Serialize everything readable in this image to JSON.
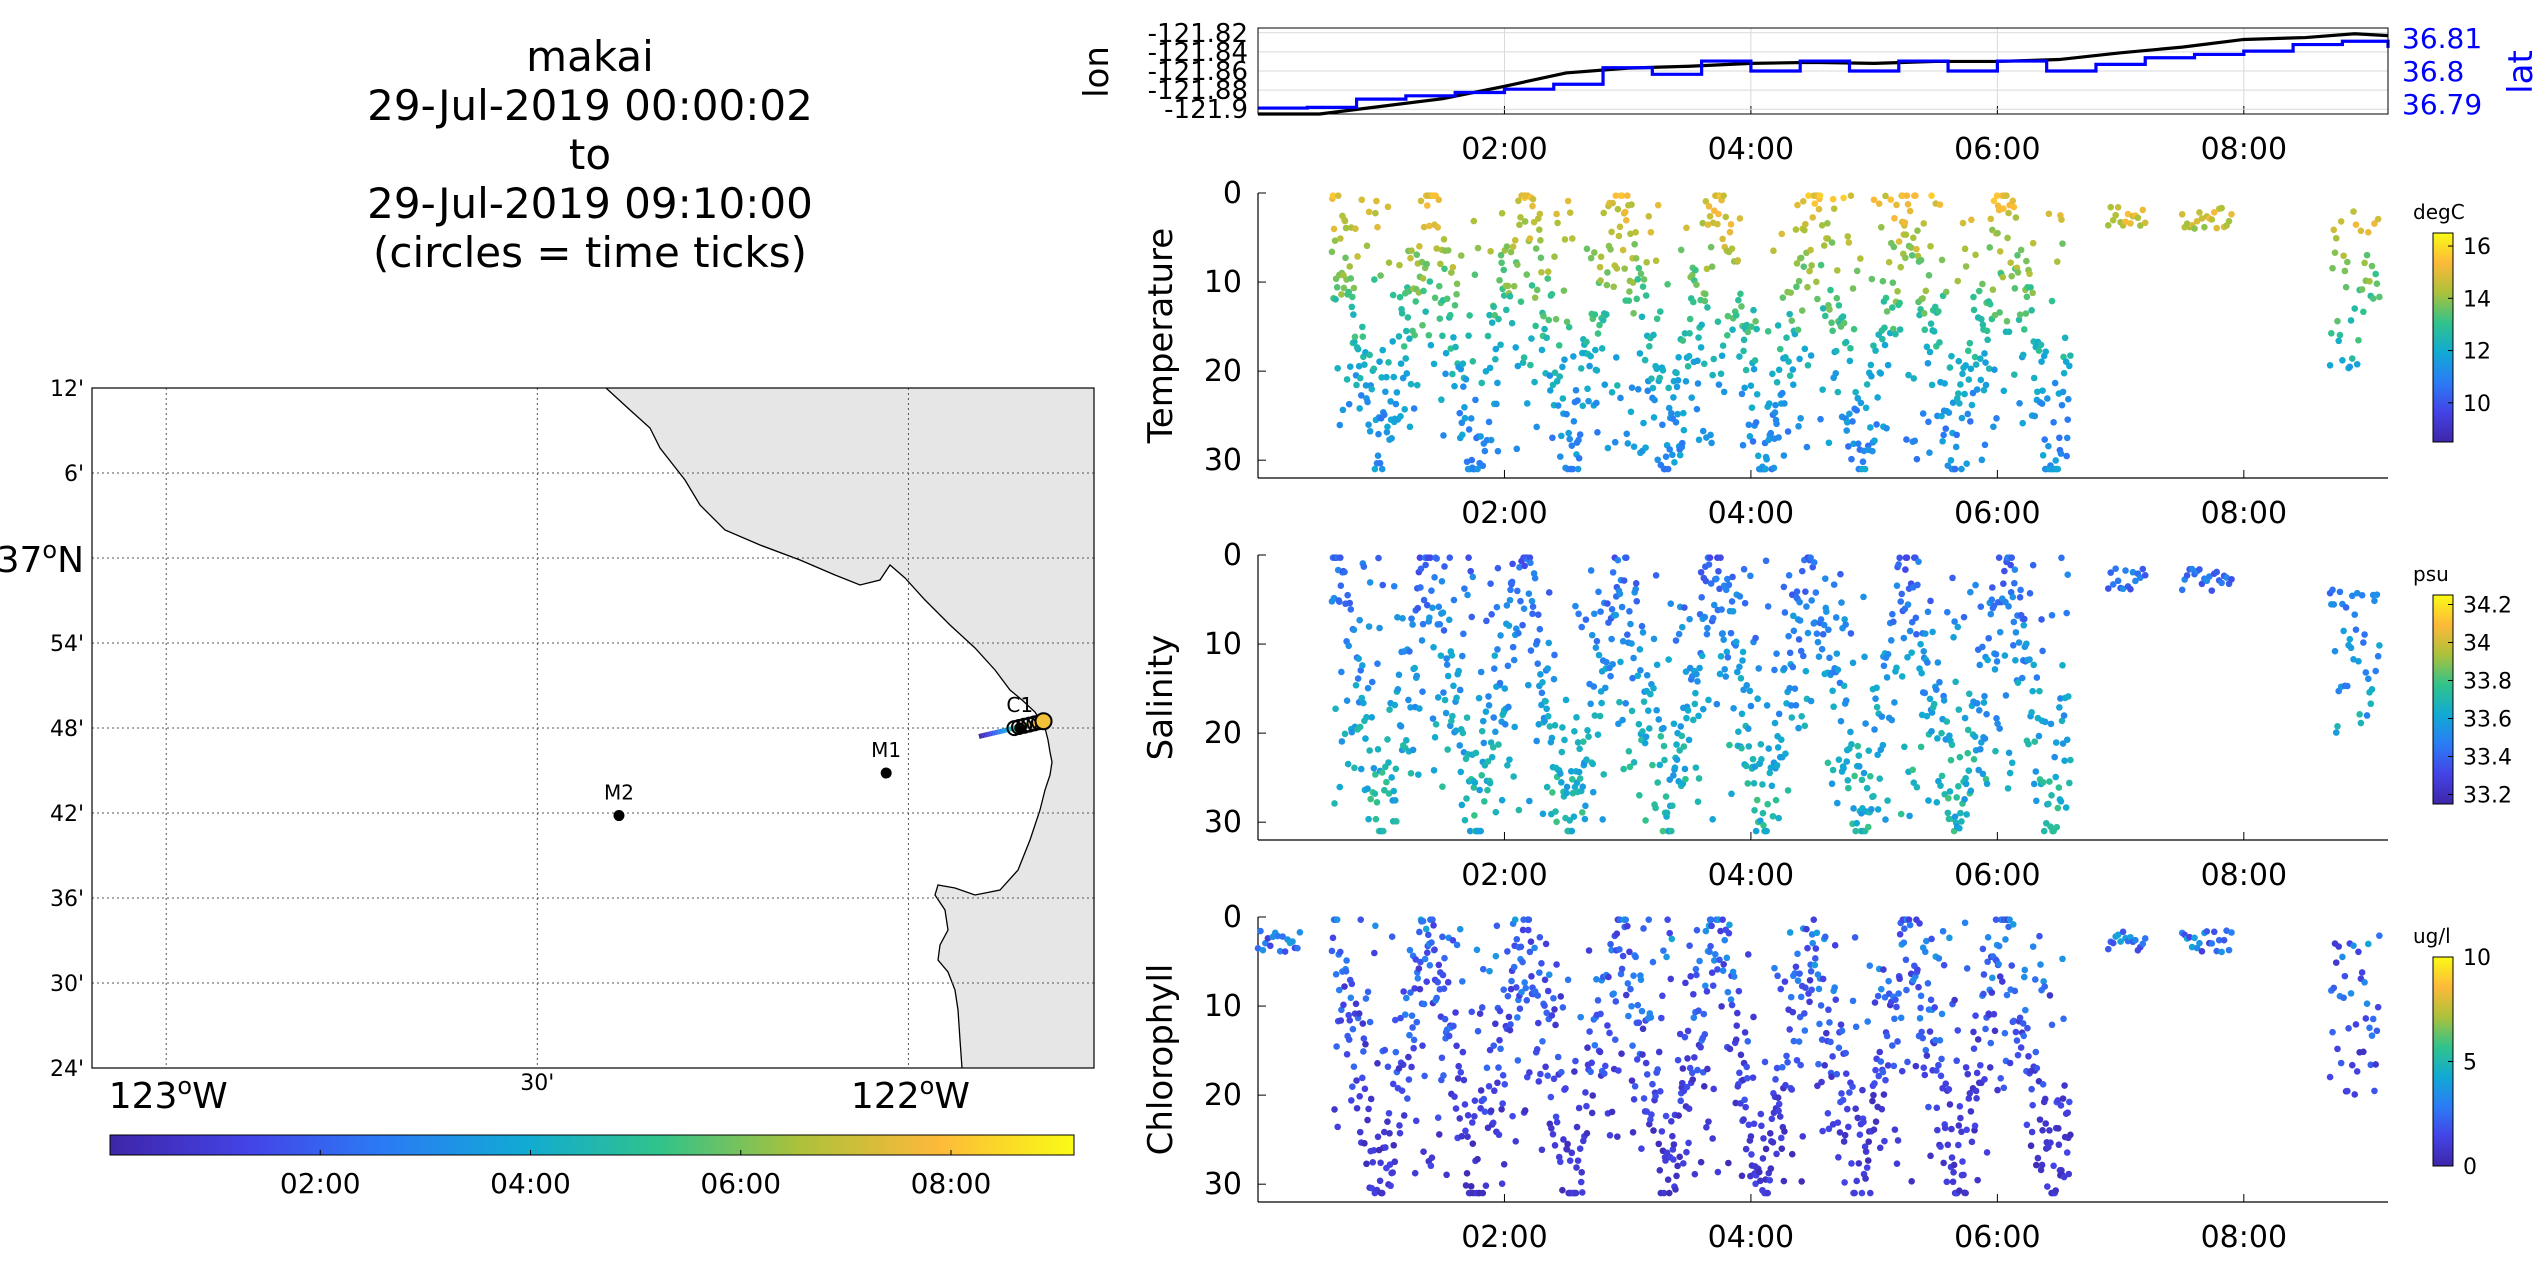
{
  "title": {
    "line1": "makai",
    "line2": "29-Jul-2019 00:00:02",
    "line3": "to",
    "line4": "29-Jul-2019 09:10:00",
    "line5": "(circles = time ticks)"
  },
  "colors": {
    "lon_line": "#000000",
    "lat_line": "#0000ff",
    "land": "#e6e6e6",
    "colormap": [
      "#3e26a8",
      "#4443e7",
      "#2a7cf5",
      "#11aad4",
      "#31c38a",
      "#acc13a",
      "#fdb93a",
      "#f9fb15"
    ]
  },
  "chart_data": [
    {
      "type": "map",
      "lat_tick_labels": [
        "12'",
        "6'",
        "37°N",
        "54'",
        "48'",
        "42'",
        "36'",
        "30'",
        "24'"
      ],
      "lat_ticks_deg": [
        37.2,
        37.1,
        37.0,
        36.9,
        36.8,
        36.7,
        36.6,
        36.5,
        36.4
      ],
      "lon_tick_labels": [
        "123°W",
        "30'",
        "122°W"
      ],
      "lon_ticks_deg": [
        -123.0,
        -122.5,
        -122.0
      ],
      "xlim": [
        -123.1,
        -121.75
      ],
      "ylim": [
        36.4,
        37.2
      ],
      "grid": true,
      "stations": [
        {
          "name": "M2",
          "lon": -122.39,
          "lat": 36.697
        },
        {
          "name": "M1",
          "lon": -122.03,
          "lat": 36.747
        },
        {
          "name": "C1",
          "lon": -121.85,
          "lat": 36.8
        }
      ],
      "track": {
        "lon_start": -121.905,
        "lat_start": 36.79,
        "lon_end": -121.818,
        "lat_end": 36.808
      },
      "time_colorbar": {
        "tick_labels": [
          "02:00",
          "04:00",
          "06:00",
          "08:00"
        ],
        "tick_hours": [
          2,
          4,
          6,
          8
        ],
        "range_hours": [
          0,
          9.17
        ]
      }
    },
    {
      "type": "line",
      "ylabel_left": "lon",
      "ylabel_right": "lat",
      "yticks_left": [
        "-121.82",
        "-121.84",
        "-121.86",
        "-121.88",
        "-121.9"
      ],
      "yticks_right": [
        "36.81",
        "36.8",
        "36.79"
      ],
      "ylim_left": [
        -121.905,
        -121.815
      ],
      "ylim_right": [
        36.787,
        36.813
      ],
      "xlim_hours": [
        0,
        9.17
      ],
      "xticks": [
        "02:00",
        "04:00",
        "06:00",
        "08:00"
      ],
      "xtick_hours": [
        2,
        4,
        6,
        8
      ],
      "grid": true,
      "series": [
        {
          "name": "lon",
          "axis": "left",
          "hours": [
            0,
            0.5,
            1.0,
            1.5,
            2.0,
            2.5,
            3.0,
            3.5,
            4.0,
            4.5,
            5.0,
            5.5,
            6.0,
            6.5,
            7.0,
            7.5,
            8.0,
            8.5,
            8.9,
            9.17
          ],
          "values": [
            -121.905,
            -121.905,
            -121.897,
            -121.889,
            -121.876,
            -121.862,
            -121.857,
            -121.855,
            -121.852,
            -121.851,
            -121.852,
            -121.85,
            -121.85,
            -121.848,
            -121.841,
            -121.835,
            -121.827,
            -121.825,
            -121.821,
            -121.823
          ]
        },
        {
          "name": "lat",
          "axis": "right",
          "hours": [
            0,
            0.4,
            0.8,
            1.2,
            1.6,
            2.0,
            2.4,
            2.8,
            3.2,
            3.6,
            4.0,
            4.4,
            4.8,
            5.2,
            5.6,
            6.0,
            6.4,
            6.8,
            7.2,
            7.6,
            8.0,
            8.4,
            8.8,
            9.17
          ],
          "values": [
            36.7888,
            36.789,
            36.7915,
            36.7925,
            36.7935,
            36.7945,
            36.796,
            36.801,
            36.799,
            36.803,
            36.8,
            36.803,
            36.8,
            36.803,
            36.8,
            36.803,
            36.8,
            36.802,
            36.804,
            36.805,
            36.806,
            36.808,
            36.809,
            36.807
          ]
        }
      ]
    },
    {
      "type": "scatter",
      "variable": "Temperature",
      "ylabel": "Temperature",
      "yticks": [
        "0",
        "10",
        "20",
        "30"
      ],
      "ylim": [
        32,
        0
      ],
      "xlim_hours": [
        0,
        9.17
      ],
      "xticks": [
        "02:00",
        "04:00",
        "06:00",
        "08:00"
      ],
      "xtick_hours": [
        2,
        4,
        6,
        8
      ],
      "colorbar": {
        "unit": "degC",
        "ticks": [
          "16",
          "14",
          "12",
          "10"
        ],
        "tick_values": [
          16,
          14,
          12,
          10
        ],
        "range": [
          8.5,
          16.5
        ]
      },
      "profile_start_hours": 0.6,
      "profile_end_hours": 6.6,
      "yo_period_hours": 0.78,
      "surface_only_hours": [
        [
          6.9,
          7.2
        ],
        [
          7.5,
          7.9
        ]
      ],
      "late_block_hours": [
        8.7,
        9.1
      ],
      "value_range_shallow": [
        14.5,
        15.8
      ],
      "value_range_deep": [
        10.5,
        12.0
      ]
    },
    {
      "type": "scatter",
      "variable": "Salinity",
      "ylabel": "Salinity",
      "yticks": [
        "0",
        "10",
        "20",
        "30"
      ],
      "ylim": [
        32,
        0
      ],
      "xlim_hours": [
        0,
        9.17
      ],
      "xticks": [
        "02:00",
        "04:00",
        "06:00",
        "08:00"
      ],
      "xtick_hours": [
        2,
        4,
        6,
        8
      ],
      "colorbar": {
        "unit": "psu",
        "ticks": [
          "34.2",
          "34",
          "33.8",
          "33.6",
          "33.4",
          "33.2"
        ],
        "tick_values": [
          34.2,
          34.0,
          33.8,
          33.6,
          33.4,
          33.2
        ],
        "range": [
          33.15,
          34.25
        ]
      },
      "profile_start_hours": 0.6,
      "profile_end_hours": 6.6,
      "yo_period_hours": 0.78,
      "surface_only_hours": [
        [
          6.9,
          7.2
        ],
        [
          7.5,
          7.9
        ]
      ],
      "late_block_hours": [
        8.7,
        9.1
      ],
      "value_range_shallow": [
        33.3,
        33.5
      ],
      "value_range_deep": [
        33.55,
        33.8
      ]
    },
    {
      "type": "scatter",
      "variable": "Chlorophyll",
      "ylabel": "Chlorophyll",
      "yticks": [
        "0",
        "10",
        "20",
        "30"
      ],
      "ylim": [
        32,
        0
      ],
      "xlim_hours": [
        0,
        9.17
      ],
      "xticks": [
        "02:00",
        "04:00",
        "06:00",
        "08:00"
      ],
      "xtick_hours": [
        2,
        4,
        6,
        8
      ],
      "colorbar": {
        "unit": "ug/l",
        "ticks": [
          "10",
          "5",
          "0"
        ],
        "tick_values": [
          10,
          5,
          0
        ],
        "range": [
          0,
          10
        ]
      },
      "profile_start_hours": 0.6,
      "profile_end_hours": 6.6,
      "yo_period_hours": 0.78,
      "surface_only_hours": [
        [
          0.0,
          0.35
        ],
        [
          6.9,
          7.2
        ],
        [
          7.5,
          7.9
        ]
      ],
      "late_block_hours": [
        8.7,
        9.1
      ],
      "value_range_shallow": [
        1.0,
        4.5
      ],
      "value_range_deep": [
        0.3,
        1.5
      ]
    }
  ]
}
